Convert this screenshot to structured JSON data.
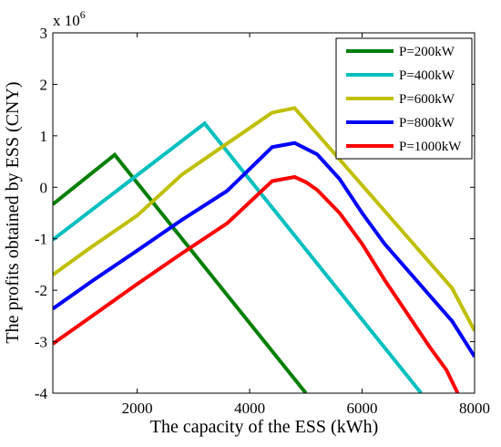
{
  "chart_data": {
    "type": "line",
    "xlabel": "The capacity of the ESS (kWh)",
    "ylabel": "The profits obtained by ESS (CNY)",
    "y_multiplier": {
      "base": "x 10",
      "exponent": "6"
    },
    "xlim": [
      500,
      8000
    ],
    "ylim": [
      -4,
      3
    ],
    "xticks": [
      2000,
      4000,
      6000,
      8000
    ],
    "yticks": [
      -4,
      -3,
      -2,
      -1,
      0,
      1,
      2,
      3
    ],
    "grid": false,
    "legend_position": "top-right",
    "series": [
      {
        "name": "P=200kW",
        "color": "#007F00",
        "x": [
          500,
          1600,
          5000
        ],
        "y": [
          -0.33,
          0.63,
          -4.0
        ]
      },
      {
        "name": "P=400kW",
        "color": "#00BFBF",
        "x": [
          500,
          3200,
          7050
        ],
        "y": [
          -1.02,
          1.24,
          -4.0
        ]
      },
      {
        "name": "P=600kW",
        "color": "#BFBF00",
        "x": [
          500,
          1200,
          2000,
          2800,
          3600,
          4400,
          4800,
          5200,
          5600,
          6000,
          6400,
          6800,
          7200,
          7600,
          8000
        ],
        "y": [
          -1.7,
          -1.15,
          -0.55,
          0.25,
          0.85,
          1.45,
          1.54,
          1.04,
          0.54,
          0.04,
          -0.46,
          -0.96,
          -1.46,
          -1.96,
          -2.79
        ]
      },
      {
        "name": "P=800kW",
        "color": "#0000FF",
        "x": [
          500,
          1200,
          2000,
          2800,
          3600,
          4400,
          4800,
          5200,
          5600,
          6000,
          6400,
          6800,
          7200,
          7600,
          8000
        ],
        "y": [
          -2.36,
          -1.82,
          -1.23,
          -0.63,
          -0.07,
          0.78,
          0.86,
          0.64,
          0.16,
          -0.5,
          -1.1,
          -1.6,
          -2.1,
          -2.6,
          -3.29
        ]
      },
      {
        "name": "P=1000kW",
        "color": "#FF0000",
        "x": [
          500,
          1200,
          2000,
          2800,
          3600,
          4400,
          4800,
          5000,
          5200,
          5600,
          6000,
          6400,
          6800,
          7200,
          7500,
          7700
        ],
        "y": [
          -3.04,
          -2.5,
          -1.88,
          -1.28,
          -0.7,
          0.12,
          0.2,
          0.1,
          -0.05,
          -0.5,
          -1.1,
          -1.8,
          -2.45,
          -3.1,
          -3.55,
          -4.0
        ]
      }
    ]
  }
}
